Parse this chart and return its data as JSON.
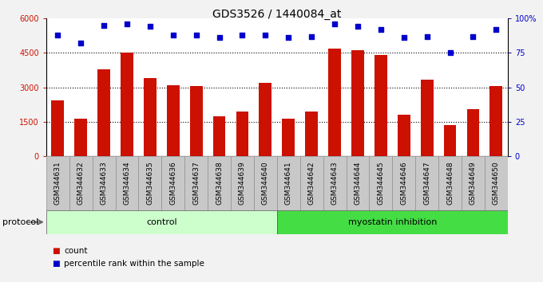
{
  "title": "GDS3526 / 1440084_at",
  "categories": [
    "GSM344631",
    "GSM344632",
    "GSM344633",
    "GSM344634",
    "GSM344635",
    "GSM344636",
    "GSM344637",
    "GSM344638",
    "GSM344639",
    "GSM344640",
    "GSM344641",
    "GSM344642",
    "GSM344643",
    "GSM344644",
    "GSM344645",
    "GSM344646",
    "GSM344647",
    "GSM344648",
    "GSM344649",
    "GSM344650"
  ],
  "bar_values": [
    2450,
    1650,
    3800,
    4500,
    3400,
    3100,
    3050,
    1750,
    1950,
    3200,
    1650,
    1950,
    4700,
    4600,
    4400,
    1800,
    3350,
    1350,
    2050,
    3050
  ],
  "percentile_values": [
    88,
    82,
    95,
    96,
    94,
    88,
    88,
    86,
    88,
    88,
    86,
    87,
    96,
    94,
    92,
    86,
    87,
    75,
    87,
    92
  ],
  "bar_color": "#cc1100",
  "dot_color": "#0000cc",
  "ylim_left": [
    0,
    6000
  ],
  "ylim_right": [
    0,
    100
  ],
  "yticks_left": [
    0,
    1500,
    3000,
    4500,
    6000
  ],
  "ytick_labels_left": [
    "0",
    "1500",
    "3000",
    "4500",
    "6000"
  ],
  "yticks_right": [
    0,
    25,
    50,
    75,
    100
  ],
  "ytick_labels_right": [
    "0",
    "25",
    "50",
    "75",
    "100%"
  ],
  "grid_values": [
    1500,
    3000,
    4500
  ],
  "groups": [
    {
      "label": "control",
      "start": 0,
      "end": 10,
      "color": "#ccffcc"
    },
    {
      "label": "myostatin inhibition",
      "start": 10,
      "end": 20,
      "color": "#44dd44"
    }
  ],
  "protocol_label": "protocol",
  "legend_items": [
    {
      "color": "#cc1100",
      "label": "count"
    },
    {
      "color": "#0000cc",
      "label": "percentile rank within the sample"
    }
  ],
  "fig_bg": "#f2f2f2",
  "plot_bg": "#ffffff",
  "xtick_bg": "#c8c8c8",
  "title_fontsize": 10,
  "tick_fontsize": 7,
  "xtick_fontsize": 6.5,
  "bar_width": 0.55
}
